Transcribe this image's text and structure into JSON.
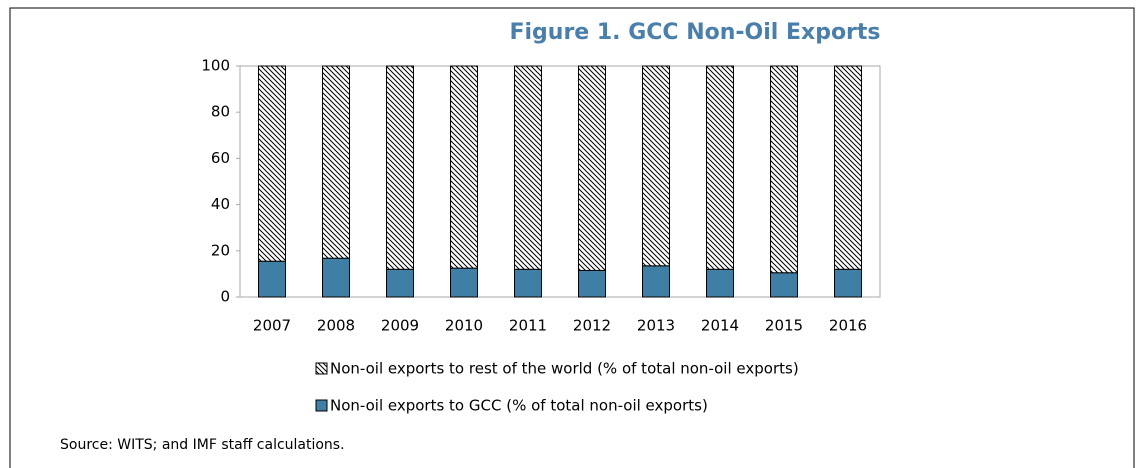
{
  "chart_data": {
    "type": "stacked_bar",
    "title": "Figure 1. GCC Non-Oil Exports",
    "categories": [
      "2007",
      "2008",
      "2009",
      "2010",
      "2011",
      "2012",
      "2013",
      "2014",
      "2015",
      "2016"
    ],
    "series": [
      {
        "name": "Non-oil exports to GCC (% of total non-oil exports)",
        "color": "#3f7fa6",
        "values": [
          15.5,
          16.8,
          12,
          12.5,
          12,
          11.5,
          13.5,
          12,
          10.5,
          12
        ]
      },
      {
        "name": "Non-oil exports to rest of the world (% of total non-oil exports)",
        "color": "#000000",
        "pattern": "hatch",
        "values": [
          84.5,
          83.2,
          88,
          87.5,
          88,
          88.5,
          86.5,
          88,
          89.5,
          88
        ]
      }
    ],
    "ylim": [
      0,
      100
    ],
    "yticks": [
      0,
      20,
      40,
      60,
      80,
      100
    ],
    "source": "Source: WITS; and IMF staff calculations."
  }
}
